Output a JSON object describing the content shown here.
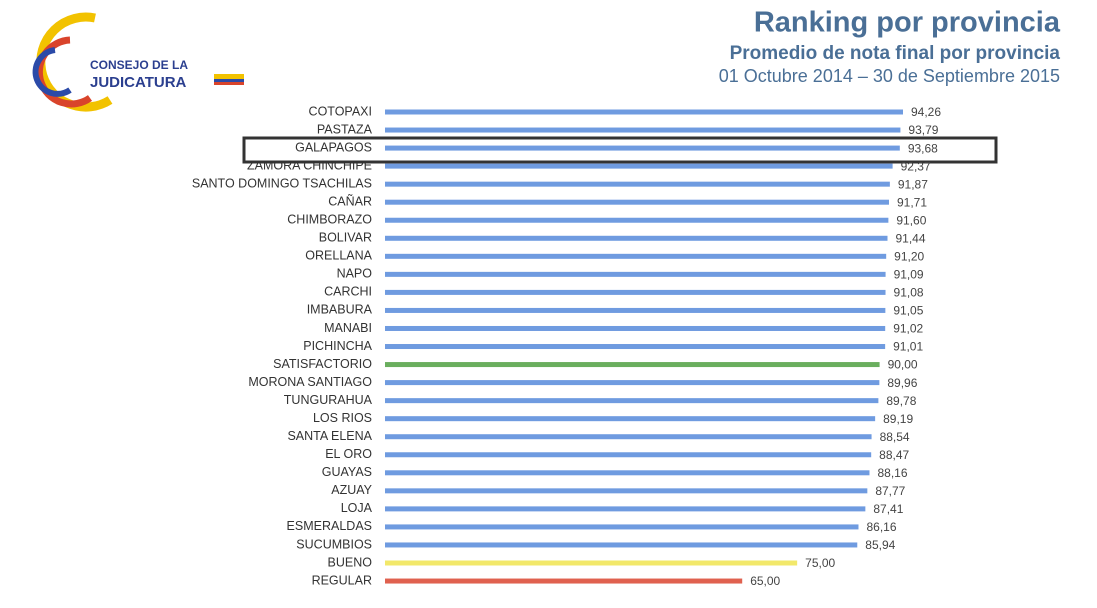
{
  "logo": {
    "line1": "CONSEJO DE LA",
    "line2": "JUDICATURA"
  },
  "chart_data": {
    "type": "hbar",
    "title": "Ranking  por provincia",
    "subtitle": "Promedio de nota final por provincia",
    "period": "01 Octubre 2014 – 30 de Septiembre 2015",
    "categories": [
      "COTOPAXI",
      "PASTAZA",
      "GALAPAGOS",
      "ZAMORA CHINCHIPE",
      "SANTO DOMINGO TSACHILAS",
      "CAÑAR",
      "CHIMBORAZO",
      "BOLIVAR",
      "ORELLANA",
      "NAPO",
      "CARCHI",
      "IMBABURA",
      "MANABI",
      "PICHINCHA",
      "SATISFACTORIO",
      "MORONA SANTIAGO",
      "TUNGURAHUA",
      "LOS RIOS",
      "SANTA ELENA",
      "EL ORO",
      "GUAYAS",
      "AZUAY",
      "LOJA",
      "ESMERALDAS",
      "SUCUMBIOS",
      "BUENO",
      "REGULAR"
    ],
    "values": [
      94.26,
      93.79,
      93.68,
      92.37,
      91.87,
      91.71,
      91.6,
      91.44,
      91.2,
      91.09,
      91.08,
      91.05,
      91.02,
      91.01,
      90.0,
      89.96,
      89.78,
      89.19,
      88.54,
      88.47,
      88.16,
      87.77,
      87.41,
      86.16,
      85.94,
      75.0,
      65.0
    ],
    "value_labels": [
      "94,26",
      "93,79",
      "93,68",
      "92,37",
      "91,87",
      "91,71",
      "91,60",
      "91,44",
      "91,20",
      "91,09",
      "91,08",
      "91,05",
      "91,02",
      "91,01",
      "90,00",
      "89,96",
      "89,78",
      "89,19",
      "88,54",
      "88,47",
      "88,16",
      "87,77",
      "87,41",
      "86,16",
      "85,94",
      "75,00",
      "65,00"
    ],
    "colors": [
      "#6f9be0",
      "#6f9be0",
      "#6f9be0",
      "#6f9be0",
      "#6f9be0",
      "#6f9be0",
      "#6f9be0",
      "#6f9be0",
      "#6f9be0",
      "#6f9be0",
      "#6f9be0",
      "#6f9be0",
      "#6f9be0",
      "#6f9be0",
      "#6aae5e",
      "#6f9be0",
      "#6f9be0",
      "#6f9be0",
      "#6f9be0",
      "#6f9be0",
      "#6f9be0",
      "#6f9be0",
      "#6f9be0",
      "#6f9be0",
      "#6f9be0",
      "#f2e86a",
      "#e0614f"
    ]
  }
}
